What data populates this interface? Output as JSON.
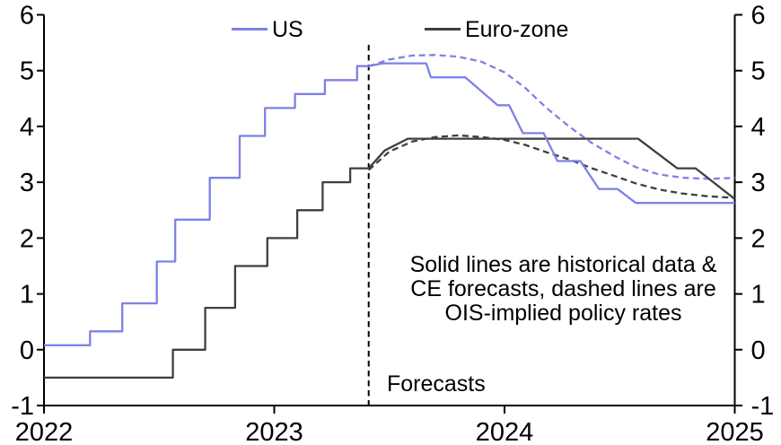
{
  "chart_data": {
    "type": "line",
    "title": "",
    "x_axis": {
      "range": [
        2022,
        2025
      ],
      "ticks": [
        {
          "value": 2022,
          "label": "2022"
        },
        {
          "value": 2023,
          "label": "2023"
        },
        {
          "value": 2024,
          "label": "2024"
        },
        {
          "value": 2025,
          "label": "2025"
        }
      ]
    },
    "y_axis": {
      "range": [
        -1,
        6
      ],
      "sides": "both",
      "ticks": [
        {
          "value": 6,
          "label": "6"
        },
        {
          "value": 5,
          "label": "5"
        },
        {
          "value": 4,
          "label": "4"
        },
        {
          "value": 3,
          "label": "3"
        },
        {
          "value": 2,
          "label": "2"
        },
        {
          "value": 1,
          "label": "1"
        },
        {
          "value": 0,
          "label": "0"
        },
        {
          "value": -1,
          "label": "-1"
        }
      ]
    },
    "grid": false,
    "colors": {
      "axis": "#000000",
      "us": "#7e81e6",
      "euro_zone": "#3f3f3f"
    },
    "legend": {
      "items": [
        {
          "id": "us",
          "label": "US",
          "color": "#7e81e6"
        },
        {
          "id": "euro-zone",
          "label": "Euro-zone",
          "color": "#3f3f3f"
        }
      ]
    },
    "forecast_marker": {
      "x": 2023.41,
      "label": "Forecasts",
      "style": "dashed-vertical-line"
    },
    "annotation": {
      "lines": [
        "Solid lines are historical data &",
        "CE forecasts, dashed lines are",
        "OIS-implied policy rates"
      ]
    },
    "series": [
      {
        "id": "us-solid",
        "name": "US policy rate (historical & CE forecast)",
        "style": "solid",
        "color": "#7e81e6",
        "z": 4,
        "points": [
          [
            2022.0,
            0.08
          ],
          [
            2022.2,
            0.08
          ],
          [
            2022.2,
            0.33
          ],
          [
            2022.34,
            0.33
          ],
          [
            2022.34,
            0.83
          ],
          [
            2022.49,
            0.83
          ],
          [
            2022.49,
            1.58
          ],
          [
            2022.57,
            1.58
          ],
          [
            2022.57,
            2.33
          ],
          [
            2022.72,
            2.33
          ],
          [
            2022.72,
            3.08
          ],
          [
            2022.85,
            3.08
          ],
          [
            2022.85,
            3.83
          ],
          [
            2022.96,
            3.83
          ],
          [
            2022.96,
            4.33
          ],
          [
            2023.09,
            4.33
          ],
          [
            2023.09,
            4.58
          ],
          [
            2023.22,
            4.58
          ],
          [
            2023.22,
            4.83
          ],
          [
            2023.36,
            4.83
          ],
          [
            2023.36,
            5.08
          ],
          [
            2023.41,
            5.08
          ],
          [
            2023.47,
            5.13
          ],
          [
            2023.66,
            5.13
          ],
          [
            2023.68,
            4.88
          ],
          [
            2023.83,
            4.88
          ],
          [
            2023.97,
            4.38
          ],
          [
            2024.02,
            4.38
          ],
          [
            2024.08,
            3.88
          ],
          [
            2024.17,
            3.88
          ],
          [
            2024.23,
            3.38
          ],
          [
            2024.33,
            3.38
          ],
          [
            2024.41,
            2.88
          ],
          [
            2024.49,
            2.88
          ],
          [
            2024.57,
            2.63
          ],
          [
            2025.0,
            2.63
          ]
        ]
      },
      {
        "id": "euro-zone-solid",
        "name": "Euro-zone policy rate (historical & CE forecast)",
        "style": "solid",
        "color": "#3f3f3f",
        "z": 3,
        "points": [
          [
            2022.0,
            -0.5
          ],
          [
            2022.56,
            -0.5
          ],
          [
            2022.56,
            0.0
          ],
          [
            2022.7,
            0.0
          ],
          [
            2022.7,
            0.75
          ],
          [
            2022.83,
            0.75
          ],
          [
            2022.83,
            1.5
          ],
          [
            2022.97,
            1.5
          ],
          [
            2022.97,
            2.0
          ],
          [
            2023.1,
            2.0
          ],
          [
            2023.1,
            2.5
          ],
          [
            2023.21,
            2.5
          ],
          [
            2023.21,
            3.0
          ],
          [
            2023.33,
            3.0
          ],
          [
            2023.33,
            3.25
          ],
          [
            2023.41,
            3.25
          ],
          [
            2023.48,
            3.57
          ],
          [
            2023.58,
            3.78
          ],
          [
            2024.58,
            3.78
          ],
          [
            2024.75,
            3.25
          ],
          [
            2024.83,
            3.25
          ],
          [
            2025.0,
            2.7
          ]
        ]
      },
      {
        "id": "us-ois-dashed",
        "name": "US OIS-implied policy rate",
        "style": "dashed",
        "color": "#7e81e6",
        "z": 2,
        "points": [
          [
            2023.41,
            5.08
          ],
          [
            2023.5,
            5.2
          ],
          [
            2023.6,
            5.27
          ],
          [
            2023.7,
            5.28
          ],
          [
            2023.8,
            5.25
          ],
          [
            2023.9,
            5.16
          ],
          [
            2024.0,
            4.97
          ],
          [
            2024.09,
            4.69
          ],
          [
            2024.18,
            4.34
          ],
          [
            2024.28,
            4.0
          ],
          [
            2024.38,
            3.7
          ],
          [
            2024.48,
            3.46
          ],
          [
            2024.57,
            3.27
          ],
          [
            2024.67,
            3.14
          ],
          [
            2024.78,
            3.08
          ],
          [
            2024.89,
            3.06
          ],
          [
            2025.0,
            3.08
          ]
        ]
      },
      {
        "id": "euro-zone-ois-dashed",
        "name": "Euro-zone OIS-implied policy rate",
        "style": "dashed",
        "color": "#3f3f3f",
        "z": 1,
        "points": [
          [
            2023.41,
            3.22
          ],
          [
            2023.5,
            3.55
          ],
          [
            2023.6,
            3.73
          ],
          [
            2023.7,
            3.81
          ],
          [
            2023.8,
            3.84
          ],
          [
            2023.9,
            3.81
          ],
          [
            2024.0,
            3.76
          ],
          [
            2024.09,
            3.67
          ],
          [
            2024.18,
            3.54
          ],
          [
            2024.28,
            3.41
          ],
          [
            2024.38,
            3.25
          ],
          [
            2024.48,
            3.11
          ],
          [
            2024.57,
            2.98
          ],
          [
            2024.67,
            2.87
          ],
          [
            2024.77,
            2.8
          ],
          [
            2024.88,
            2.75
          ],
          [
            2025.0,
            2.72
          ]
        ]
      }
    ]
  }
}
